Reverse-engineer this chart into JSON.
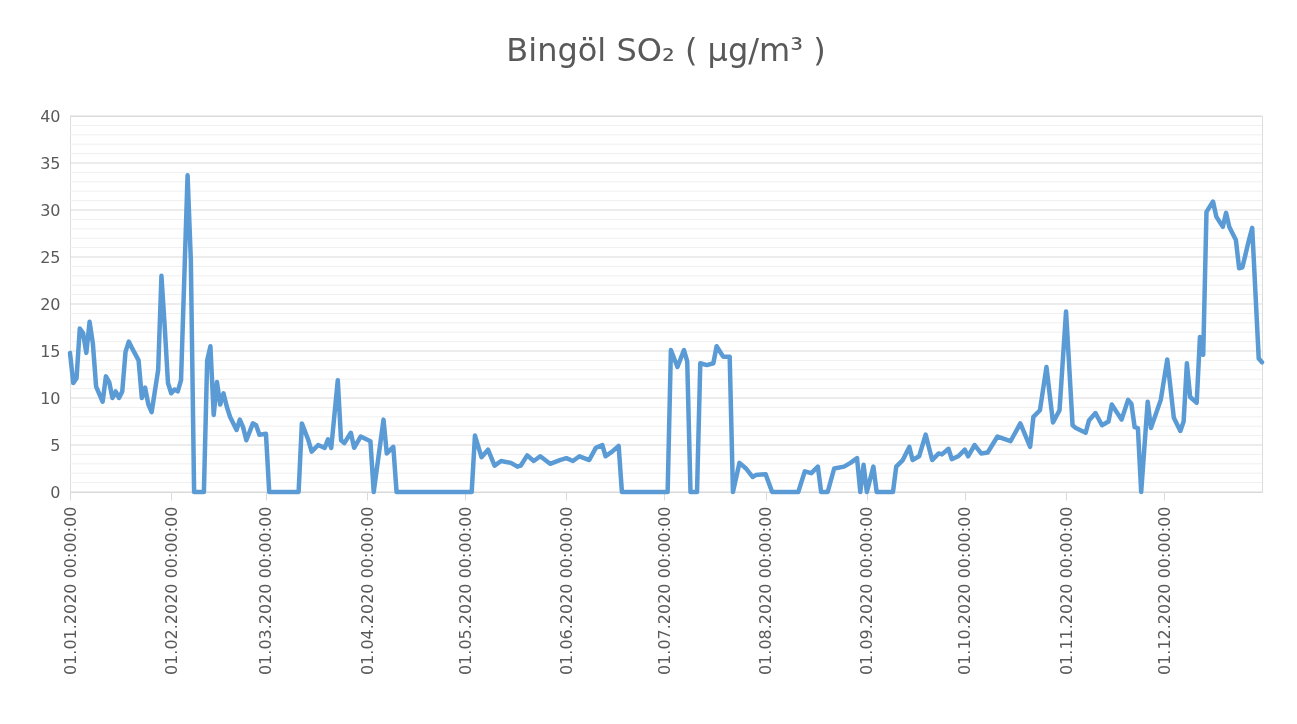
{
  "chart_data": {
    "type": "line",
    "title": "Bingöl SO₂ ( µg/m³ )",
    "x": [
      "2020-01-01",
      "2020-01-02",
      "2020-01-03",
      "2020-01-04",
      "2020-01-05",
      "2020-01-06",
      "2020-01-07",
      "2020-01-08",
      "2020-01-09",
      "2020-01-11",
      "2020-01-12",
      "2020-01-13",
      "2020-01-14",
      "2020-01-15",
      "2020-01-16",
      "2020-01-17",
      "2020-01-18",
      "2020-01-19",
      "2020-01-20",
      "2020-01-22",
      "2020-01-23",
      "2020-01-24",
      "2020-01-25",
      "2020-01-26",
      "2020-01-28",
      "2020-01-29",
      "2020-01-30",
      "2020-01-31",
      "2020-02-01",
      "2020-02-02",
      "2020-02-03",
      "2020-02-04",
      "2020-02-06",
      "2020-02-07",
      "2020-02-08",
      "2020-02-11",
      "2020-02-12",
      "2020-02-13",
      "2020-02-14",
      "2020-02-15",
      "2020-02-16",
      "2020-02-17",
      "2020-02-18",
      "2020-02-19",
      "2020-02-21",
      "2020-02-22",
      "2020-02-23",
      "2020-02-24",
      "2020-02-26",
      "2020-02-27",
      "2020-02-28",
      "2020-03-01",
      "2020-03-02",
      "2020-03-11",
      "2020-03-12",
      "2020-03-14",
      "2020-03-15",
      "2020-03-17",
      "2020-03-19",
      "2020-03-20",
      "2020-03-21",
      "2020-03-23",
      "2020-03-24",
      "2020-03-25",
      "2020-03-27",
      "2020-03-28",
      "2020-03-30",
      "2020-04-02",
      "2020-04-03",
      "2020-04-06",
      "2020-04-07",
      "2020-04-09",
      "2020-04-10",
      "2020-05-03",
      "2020-05-04",
      "2020-05-06",
      "2020-05-08",
      "2020-05-10",
      "2020-05-12",
      "2020-05-15",
      "2020-05-17",
      "2020-05-18",
      "2020-05-20",
      "2020-05-22",
      "2020-05-24",
      "2020-05-27",
      "2020-05-30",
      "2020-06-01",
      "2020-06-03",
      "2020-06-05",
      "2020-06-08",
      "2020-06-10",
      "2020-06-12",
      "2020-06-13",
      "2020-06-15",
      "2020-06-17",
      "2020-06-18",
      "2020-07-02",
      "2020-07-03",
      "2020-07-05",
      "2020-07-07",
      "2020-07-08",
      "2020-07-09",
      "2020-07-11",
      "2020-07-12",
      "2020-07-14",
      "2020-07-16",
      "2020-07-17",
      "2020-07-19",
      "2020-07-21",
      "2020-07-22",
      "2020-07-24",
      "2020-07-26",
      "2020-07-28",
      "2020-07-29",
      "2020-08-01",
      "2020-08-03",
      "2020-08-11",
      "2020-08-13",
      "2020-08-15",
      "2020-08-17",
      "2020-08-18",
      "2020-08-20",
      "2020-08-22",
      "2020-08-25",
      "2020-08-27",
      "2020-08-29",
      "2020-08-30",
      "2020-08-31",
      "2020-09-01",
      "2020-09-03",
      "2020-09-04",
      "2020-09-09",
      "2020-09-10",
      "2020-09-12",
      "2020-09-14",
      "2020-09-15",
      "2020-09-17",
      "2020-09-19",
      "2020-09-21",
      "2020-09-23",
      "2020-09-24",
      "2020-09-26",
      "2020-09-27",
      "2020-09-29",
      "2020-10-01",
      "2020-10-02",
      "2020-10-04",
      "2020-10-06",
      "2020-10-08",
      "2020-10-11",
      "2020-10-15",
      "2020-10-18",
      "2020-10-21",
      "2020-10-22",
      "2020-10-24",
      "2020-10-26",
      "2020-10-28",
      "2020-10-30",
      "2020-11-01",
      "2020-11-03",
      "2020-11-04",
      "2020-11-07",
      "2020-11-08",
      "2020-11-10",
      "2020-11-12",
      "2020-11-14",
      "2020-11-15",
      "2020-11-18",
      "2020-11-20",
      "2020-11-21",
      "2020-11-22",
      "2020-11-23",
      "2020-11-24",
      "2020-11-26",
      "2020-11-27",
      "2020-11-30",
      "2020-12-02",
      "2020-12-04",
      "2020-12-06",
      "2020-12-07",
      "2020-12-08",
      "2020-12-09",
      "2020-12-11",
      "2020-12-12",
      "2020-12-13",
      "2020-12-14",
      "2020-12-16",
      "2020-12-17",
      "2020-12-19",
      "2020-12-20",
      "2020-12-21",
      "2020-12-23",
      "2020-12-24",
      "2020-12-25",
      "2020-12-27",
      "2020-12-28",
      "2020-12-30",
      "2020-12-31"
    ],
    "series": [
      {
        "color": "#5b9bd5",
        "values": [
          14.8,
          11.6,
          12.1,
          17.4,
          16.9,
          14.8,
          18.1,
          15.8,
          11.2,
          9.6,
          12.3,
          11.7,
          10,
          10.7,
          10,
          10.7,
          14.9,
          16,
          15.3,
          14,
          10,
          11.1,
          9.3,
          8.5,
          13,
          23,
          17.6,
          11.6,
          10.5,
          10.9,
          10.7,
          11.9,
          33.7,
          24.7,
          0,
          0,
          14,
          15.5,
          8.2,
          11.7,
          9.3,
          10.5,
          9.1,
          8,
          6.6,
          7.7,
          6.9,
          5.5,
          7.3,
          7.1,
          6.1,
          6.2,
          0,
          0,
          7.3,
          5.5,
          4.3,
          5,
          4.7,
          5.6,
          4.7,
          11.9,
          5.5,
          5.2,
          6.3,
          4.7,
          5.9,
          5.4,
          0,
          7.7,
          4.1,
          4.8,
          0,
          0,
          6,
          3.7,
          4.5,
          2.8,
          3.3,
          3.1,
          2.7,
          2.8,
          3.9,
          3.3,
          3.8,
          3,
          3.4,
          3.6,
          3.3,
          3.8,
          3.4,
          4.7,
          5,
          3.8,
          4.3,
          4.9,
          0,
          0,
          15.1,
          13.3,
          15.1,
          13.9,
          0,
          0,
          13.7,
          13.5,
          13.7,
          15.5,
          14.4,
          14.4,
          0,
          3.1,
          2.5,
          1.6,
          1.8,
          1.9,
          0,
          0,
          2.2,
          2,
          2.7,
          0,
          0,
          2.5,
          2.7,
          3.1,
          3.6,
          0,
          2.9,
          0,
          2.7,
          0,
          0,
          2.7,
          3.4,
          4.8,
          3.4,
          3.8,
          6.1,
          3.4,
          4.1,
          4,
          4.6,
          3.5,
          3.8,
          4.5,
          3.8,
          5,
          4.1,
          4.2,
          5.9,
          5.4,
          7.3,
          4.8,
          8,
          8.7,
          13.3,
          7.4,
          8.7,
          19.2,
          7.1,
          6.8,
          6.3,
          7.6,
          8.4,
          7.1,
          7.5,
          9.3,
          7.7,
          9.8,
          9.4,
          6.9,
          6.8,
          0,
          9.6,
          6.8,
          9.8,
          14.1,
          7.9,
          6.5,
          7.5,
          13.7,
          10.1,
          9.5,
          16.5,
          14.6,
          29.8,
          30.9,
          29.3,
          28.2,
          29.7,
          28.2,
          26.8,
          23.8,
          23.9,
          26.8,
          28.1,
          14.2,
          13.8
        ]
      }
    ],
    "xlim": [
      "2020-01-01",
      "2020-12-31"
    ],
    "xticks": [
      {
        "value": "2020-01-01",
        "label": "01.01.2020 00:00:00"
      },
      {
        "value": "2020-02-01",
        "label": "01.02.2020 00:00:00"
      },
      {
        "value": "2020-03-01",
        "label": "01.03.2020 00:00:00"
      },
      {
        "value": "2020-04-01",
        "label": "01.04.2020 00:00:00"
      },
      {
        "value": "2020-05-01",
        "label": "01.05.2020 00:00:00"
      },
      {
        "value": "2020-06-01",
        "label": "01.06.2020 00:00:00"
      },
      {
        "value": "2020-07-01",
        "label": "01.07.2020 00:00:00"
      },
      {
        "value": "2020-08-01",
        "label": "01.08.2020 00:00:00"
      },
      {
        "value": "2020-09-01",
        "label": "01.09.2020 00:00:00"
      },
      {
        "value": "2020-10-01",
        "label": "01.10.2020 00:00:00"
      },
      {
        "value": "2020-11-01",
        "label": "01.11.2020 00:00:00"
      },
      {
        "value": "2020-12-01",
        "label": "01.12.2020 00:00:00"
      }
    ],
    "ylim": [
      0,
      40
    ],
    "yticks": [
      0,
      {
        "value": 1,
        "label": null
      },
      {
        "value": 2,
        "label": null
      },
      {
        "value": 3,
        "label": null
      },
      {
        "value": 4,
        "label": null
      },
      5,
      {
        "value": 6,
        "label": null
      },
      {
        "value": 7,
        "label": null
      },
      {
        "value": 8,
        "label": null
      },
      {
        "value": 9,
        "label": null
      },
      10,
      {
        "value": 11,
        "label": null
      },
      {
        "value": 12,
        "label": null
      },
      {
        "value": 13,
        "label": null
      },
      {
        "value": 14,
        "label": null
      },
      15,
      {
        "value": 16,
        "label": null
      },
      {
        "value": 17,
        "label": null
      },
      {
        "value": 18,
        "label": null
      },
      {
        "value": 19,
        "label": null
      },
      20,
      {
        "value": 21,
        "label": null
      },
      {
        "value": 22,
        "label": null
      },
      {
        "value": 23,
        "label": null
      },
      {
        "value": 24,
        "label": null
      },
      25,
      {
        "value": 26,
        "label": null
      },
      {
        "value": 27,
        "label": null
      },
      {
        "value": 28,
        "label": null
      },
      {
        "value": 29,
        "label": null
      },
      30,
      {
        "value": 31,
        "label": null
      },
      {
        "value": 32,
        "label": null
      },
      {
        "value": 33,
        "label": null
      },
      {
        "value": 34,
        "label": null
      },
      35,
      {
        "value": 36,
        "label": null
      },
      {
        "value": 37,
        "label": null
      },
      {
        "value": 38,
        "label": null
      },
      {
        "value": 39,
        "label": null
      },
      40
    ],
    "grid": "y",
    "marker": "none",
    "line_style": "solid"
  }
}
